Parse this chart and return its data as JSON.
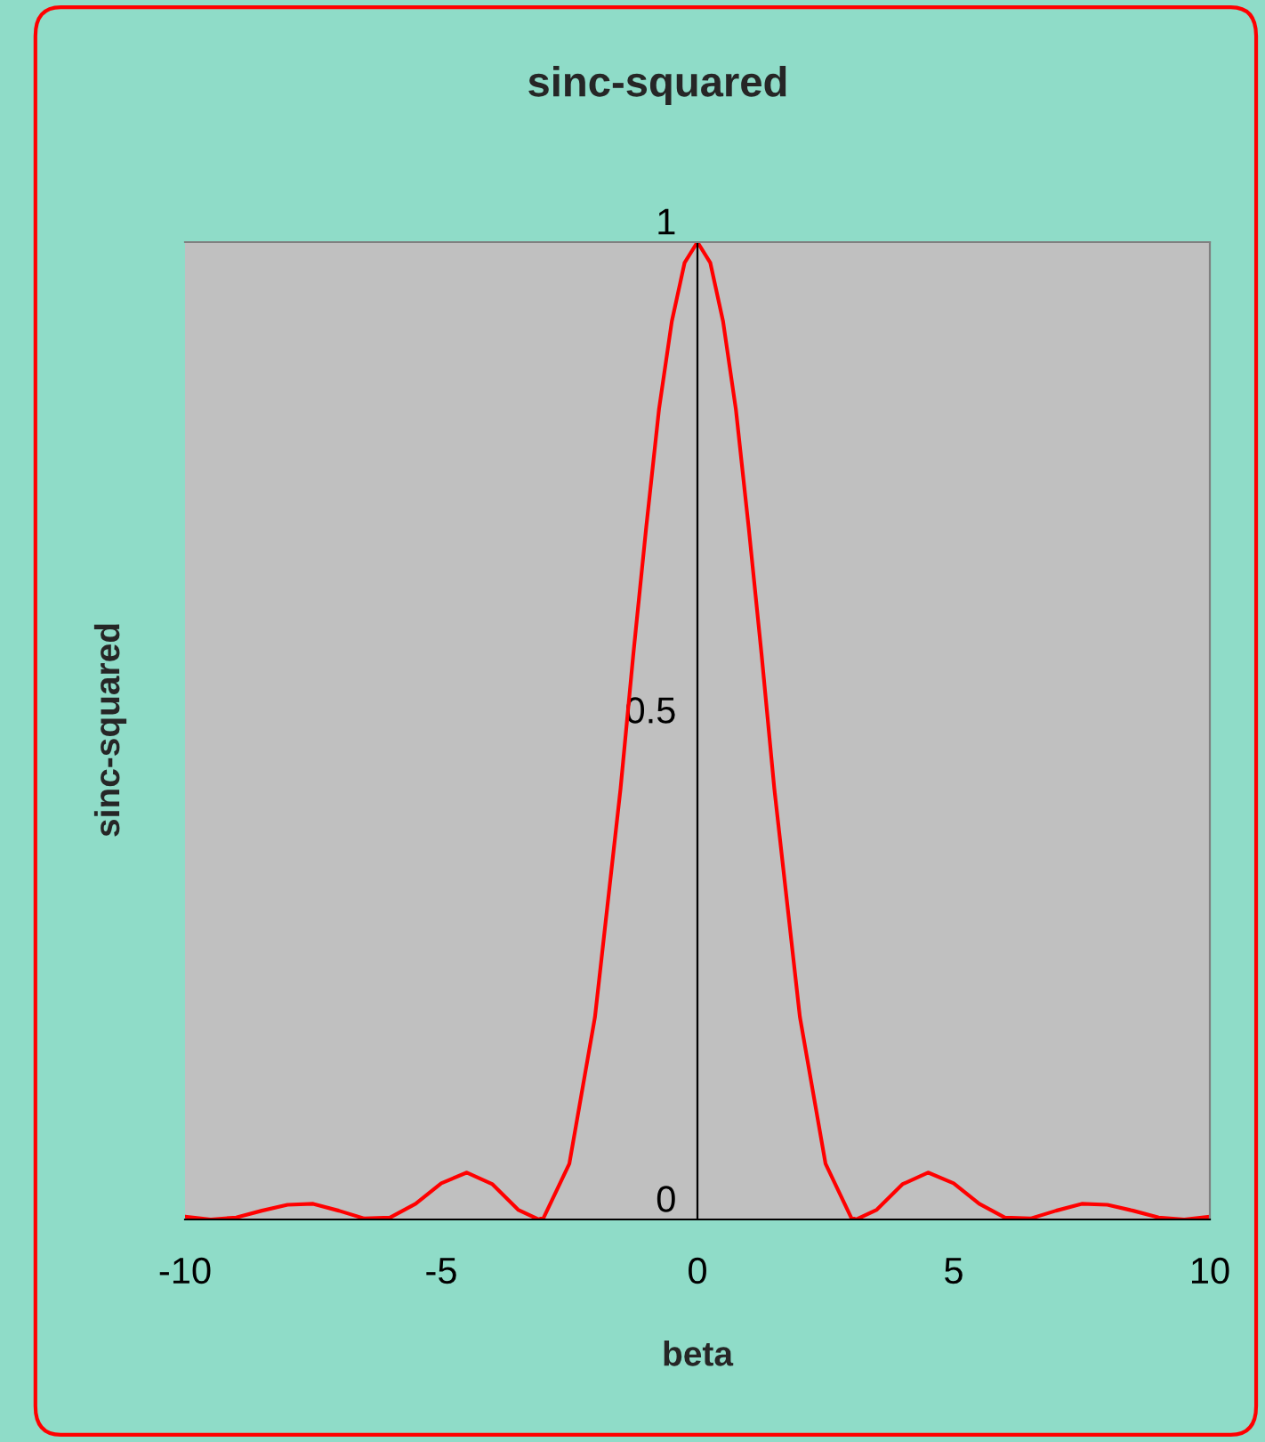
{
  "chart_data": {
    "type": "line",
    "title": "sinc-squared",
    "xlabel": "beta",
    "ylabel": "sinc-squared",
    "x": [
      -10,
      -9.5,
      -9,
      -8.5,
      -8,
      -7.5,
      -7,
      -6.5,
      -6,
      -5.5,
      -5,
      -4.5,
      -4,
      -3.5,
      -3.1,
      -3,
      -2.5,
      -2,
      -1.5,
      -1.25,
      -1,
      -0.75,
      -0.5,
      -0.25,
      0,
      0.25,
      0.5,
      0.75,
      1,
      1.25,
      1.5,
      2,
      2.5,
      3,
      3.1,
      3.5,
      4,
      4.5,
      5,
      5.5,
      6,
      6.5,
      7,
      7.5,
      8,
      8.5,
      9,
      9.5,
      10
    ],
    "series": [
      {
        "color": "#ff0000",
        "values": [
          0.003,
          0.0,
          0.002,
          0.009,
          0.015,
          0.016,
          0.009,
          0.001,
          0.002,
          0.016,
          0.037,
          0.048,
          0.036,
          0.01,
          0.0,
          0.002,
          0.057,
          0.207,
          0.441,
          0.579,
          0.708,
          0.829,
          0.919,
          0.979,
          1,
          0.979,
          0.919,
          0.829,
          0.708,
          0.579,
          0.441,
          0.207,
          0.057,
          0.002,
          0.0,
          0.01,
          0.036,
          0.048,
          0.037,
          0.016,
          0.002,
          0.001,
          0.009,
          0.016,
          0.015,
          0.009,
          0.002,
          0.0,
          0.003
        ]
      }
    ],
    "xlim": [
      -10,
      10
    ],
    "ylim": [
      0,
      1
    ],
    "xticks": [
      -10,
      -5,
      0,
      5,
      10
    ],
    "yticks": [
      0,
      0.5,
      1
    ],
    "grid": false,
    "marker": "none",
    "line_style": "solid"
  }
}
